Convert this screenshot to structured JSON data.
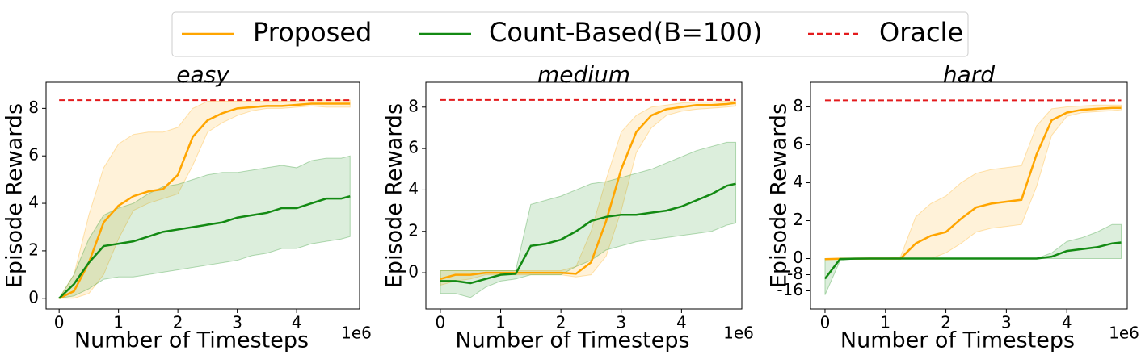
{
  "chart_data": [
    {
      "type": "line",
      "title": "easy",
      "xlabel": "Number of Timesteps",
      "ylabel": "Episode Rewards",
      "x_offset_label": "1e6",
      "x": [
        0,
        0.25,
        0.5,
        0.75,
        1,
        1.25,
        1.5,
        1.75,
        2,
        2.25,
        2.5,
        2.75,
        3,
        3.25,
        3.5,
        3.75,
        4,
        4.25,
        4.5,
        4.75,
        4.9
      ],
      "xlim": [
        -0.22,
        5.06
      ],
      "xticks": [
        0,
        1,
        2,
        3,
        4
      ],
      "ylim": [
        -0.45,
        9.1
      ],
      "yticks": [
        0,
        2,
        4,
        6,
        8
      ],
      "series": [
        {
          "name": "Proposed",
          "color": "#ffa500",
          "values": [
            0,
            0.3,
            1.5,
            3.2,
            3.9,
            4.3,
            4.5,
            4.6,
            5.2,
            6.8,
            7.5,
            7.8,
            8.0,
            8.05,
            8.1,
            8.1,
            8.15,
            8.2,
            8.2,
            8.2,
            8.2
          ],
          "lower": [
            0,
            0,
            0.2,
            1.0,
            2.5,
            3.7,
            4.0,
            4.2,
            4.4,
            5.6,
            7.0,
            7.4,
            7.7,
            7.9,
            8.0,
            8.0,
            8.05,
            8.1,
            8.05,
            8.05,
            8.05
          ],
          "upper": [
            0,
            1.0,
            3.5,
            5.5,
            6.5,
            6.9,
            7.0,
            7.0,
            7.2,
            8.0,
            8.3,
            8.3,
            8.3,
            8.3,
            8.3,
            8.3,
            8.3,
            8.35,
            8.35,
            8.35,
            8.35
          ]
        },
        {
          "name": "Count-Based(B=100)",
          "color": "#138a13",
          "values": [
            0,
            0.6,
            1.5,
            2.2,
            2.3,
            2.4,
            2.6,
            2.8,
            2.9,
            3.0,
            3.1,
            3.2,
            3.4,
            3.5,
            3.6,
            3.8,
            3.8,
            4.0,
            4.2,
            4.2,
            4.3
          ],
          "lower": [
            0,
            0.1,
            0.4,
            0.8,
            0.9,
            0.9,
            1.0,
            1.1,
            1.2,
            1.3,
            1.4,
            1.5,
            1.6,
            1.8,
            1.9,
            2.1,
            2.1,
            2.3,
            2.4,
            2.5,
            2.6
          ],
          "upper": [
            0,
            1.0,
            2.5,
            3.5,
            3.8,
            4.0,
            4.4,
            4.7,
            4.8,
            5.0,
            5.2,
            5.3,
            5.3,
            5.4,
            5.5,
            5.6,
            5.5,
            5.8,
            5.9,
            5.9,
            6.0
          ]
        },
        {
          "name": "Oracle",
          "color": "#e31a1c",
          "dashed": true,
          "y": 8.35
        }
      ]
    },
    {
      "type": "line",
      "title": "medium",
      "xlabel": "Number of Timesteps",
      "ylabel": "Episode Rewards",
      "x_offset_label": "1e6",
      "x": [
        0,
        0.25,
        0.5,
        0.75,
        1,
        1.25,
        1.5,
        1.75,
        2,
        2.25,
        2.5,
        2.75,
        3,
        3.25,
        3.5,
        3.75,
        4,
        4.25,
        4.5,
        4.75,
        4.9
      ],
      "xlim": [
        -0.24,
        5.0
      ],
      "xticks": [
        0,
        1,
        2,
        3,
        4
      ],
      "ylim": [
        -1.75,
        9.2
      ],
      "yticks": [
        0,
        2,
        4,
        6,
        8
      ],
      "series": [
        {
          "name": "Proposed",
          "color": "#ffa500",
          "values": [
            -0.3,
            -0.1,
            -0.1,
            0,
            0,
            0,
            0,
            0,
            0,
            -0.05,
            0.5,
            2.5,
            5.0,
            6.8,
            7.6,
            7.9,
            8.0,
            8.1,
            8.1,
            8.15,
            8.2
          ],
          "lower": [
            -0.6,
            -0.4,
            -0.3,
            -0.1,
            -0.1,
            -0.1,
            -0.1,
            -0.1,
            -0.1,
            -0.2,
            -0.1,
            0.8,
            3.0,
            5.8,
            7.0,
            7.6,
            7.8,
            7.9,
            7.95,
            8.0,
            8.05
          ],
          "upper": [
            0.1,
            0.1,
            0.1,
            0.1,
            0.1,
            0.1,
            0.1,
            0.1,
            0.1,
            0.3,
            2.0,
            4.5,
            6.8,
            7.6,
            8.0,
            8.1,
            8.2,
            8.25,
            8.25,
            8.3,
            8.3
          ]
        },
        {
          "name": "Count-Based(B=100)",
          "color": "#138a13",
          "values": [
            -0.4,
            -0.4,
            -0.5,
            -0.3,
            -0.1,
            -0.05,
            1.3,
            1.4,
            1.6,
            2.0,
            2.5,
            2.7,
            2.8,
            2.8,
            2.9,
            3.0,
            3.2,
            3.5,
            3.8,
            4.2,
            4.3
          ],
          "lower": [
            -1.0,
            -1.0,
            -1.2,
            -0.7,
            -0.4,
            -0.3,
            -0.1,
            -0.1,
            -0.1,
            0.3,
            0.6,
            1.1,
            1.3,
            1.5,
            1.6,
            1.7,
            1.8,
            1.9,
            2.0,
            2.3,
            2.4
          ],
          "upper": [
            0.1,
            0.1,
            0.1,
            0.1,
            0.1,
            0.1,
            3.3,
            3.5,
            3.7,
            4.0,
            4.3,
            4.4,
            4.6,
            4.8,
            5.0,
            5.3,
            5.6,
            5.9,
            6.1,
            6.3,
            6.3
          ]
        },
        {
          "name": "Oracle",
          "color": "#e31a1c",
          "dashed": true,
          "y": 8.35
        }
      ]
    },
    {
      "type": "line",
      "title": "hard",
      "xlabel": "Number of Timesteps",
      "ylabel": "Episode Rewards",
      "x_offset_label": "1e6",
      "x": [
        0,
        0.25,
        0.5,
        0.75,
        1,
        1.25,
        1.5,
        1.75,
        2,
        2.25,
        2.5,
        2.75,
        3,
        3.25,
        3.5,
        3.75,
        4,
        4.25,
        4.5,
        4.75,
        4.9
      ],
      "xlim": [
        -0.24,
        5.0
      ],
      "xticks": [
        0,
        1,
        2,
        3,
        4
      ],
      "ylim": [
        -25,
        9.3
      ],
      "yticks": [
        -16,
        -8,
        0,
        2,
        4,
        6,
        8
      ],
      "yscale": "symlog",
      "series": [
        {
          "name": "Proposed",
          "color": "#ffa500",
          "values": [
            -0.3,
            -0.1,
            -0.05,
            0,
            0,
            0,
            0.8,
            1.2,
            1.4,
            2.1,
            2.7,
            2.9,
            3.0,
            3.1,
            5.5,
            7.3,
            7.7,
            7.85,
            7.9,
            7.95,
            7.95
          ],
          "lower": [
            -0.5,
            -0.2,
            -0.1,
            0,
            0,
            0,
            0,
            0,
            0.3,
            0.8,
            1.4,
            1.6,
            1.7,
            1.8,
            3.8,
            6.5,
            7.5,
            7.7,
            7.75,
            7.8,
            7.85
          ],
          "upper": [
            0,
            0,
            0,
            0,
            0,
            0.1,
            2.2,
            2.9,
            3.3,
            4.0,
            4.5,
            4.7,
            4.8,
            4.9,
            7.0,
            7.9,
            8.0,
            8.05,
            8.1,
            8.1,
            8.1
          ]
        },
        {
          "name": "Count-Based(B=100)",
          "color": "#138a13",
          "values": [
            -10,
            -0.2,
            -0.05,
            0,
            0,
            0,
            0,
            0,
            0,
            0,
            0,
            0,
            0,
            0,
            0,
            0.1,
            0.4,
            0.5,
            0.6,
            0.8,
            0.85
          ],
          "lower": [
            -18,
            -1,
            -0.1,
            0,
            0,
            0,
            0,
            0,
            0,
            0,
            0,
            0,
            0,
            0,
            0,
            0,
            0,
            0,
            0,
            0,
            0
          ],
          "upper": [
            0,
            0,
            0,
            0,
            0,
            0,
            0,
            0,
            0,
            0,
            0,
            0,
            0,
            0,
            0,
            0.3,
            0.9,
            1.1,
            1.4,
            1.8,
            1.8
          ]
        },
        {
          "name": "Oracle",
          "color": "#e31a1c",
          "dashed": true,
          "y": 8.35
        }
      ]
    }
  ]
}
